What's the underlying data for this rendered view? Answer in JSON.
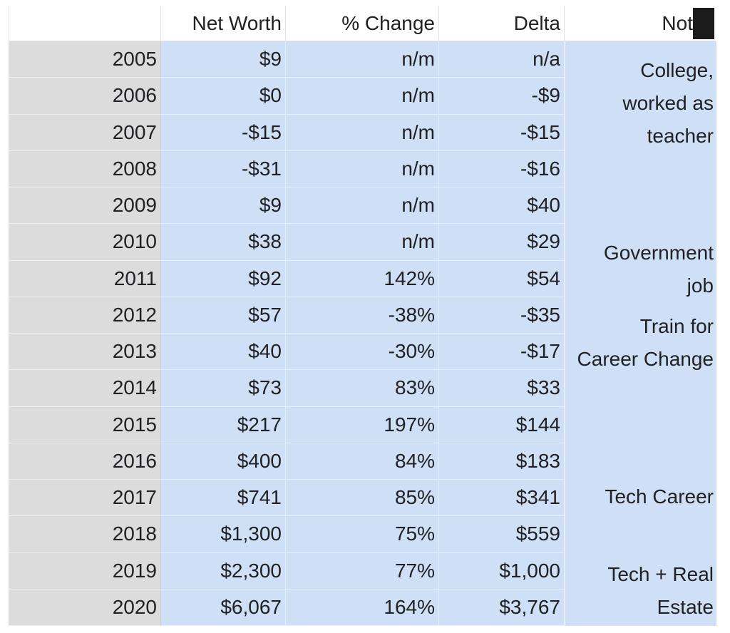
{
  "table": {
    "headers": [
      "",
      "Net Worth",
      "% Change",
      "Delta",
      "Not"
    ],
    "rows": [
      {
        "year": "2005",
        "net_worth": "$9",
        "pct": "n/m",
        "delta": "n/a"
      },
      {
        "year": "2006",
        "net_worth": "$0",
        "pct": "n/m",
        "delta": "-$9"
      },
      {
        "year": "2007",
        "net_worth": "-$15",
        "pct": "n/m",
        "delta": "-$15"
      },
      {
        "year": "2008",
        "net_worth": "-$31",
        "pct": "n/m",
        "delta": "-$16"
      },
      {
        "year": "2009",
        "net_worth": "$9",
        "pct": "n/m",
        "delta": "$40"
      },
      {
        "year": "2010",
        "net_worth": "$38",
        "pct": "n/m",
        "delta": "$29"
      },
      {
        "year": "2011",
        "net_worth": "$92",
        "pct": "142%",
        "delta": "$54"
      },
      {
        "year": "2012",
        "net_worth": "$57",
        "pct": "-38%",
        "delta": "-$35"
      },
      {
        "year": "2013",
        "net_worth": "$40",
        "pct": "-30%",
        "delta": "-$17"
      },
      {
        "year": "2014",
        "net_worth": "$73",
        "pct": "83%",
        "delta": "$33"
      },
      {
        "year": "2015",
        "net_worth": "$217",
        "pct": "197%",
        "delta": "$144"
      },
      {
        "year": "2016",
        "net_worth": "$400",
        "pct": "84%",
        "delta": "$183"
      },
      {
        "year": "2017",
        "net_worth": "$741",
        "pct": "85%",
        "delta": "$341"
      },
      {
        "year": "2018",
        "net_worth": "$1,300",
        "pct": "75%",
        "delta": "$559"
      },
      {
        "year": "2019",
        "net_worth": "$2,300",
        "pct": "77%",
        "delta": "$1,000"
      },
      {
        "year": "2020",
        "net_worth": "$6,067",
        "pct": "164%",
        "delta": "$3,767"
      }
    ],
    "notes": [
      "College,\nworked as\nteacher",
      "Government\njob",
      "Train for\nCareer Change",
      "Tech Career",
      "Tech + Real\nEstate"
    ]
  },
  "colors": {
    "value_fill": "#cfdff6",
    "row_header_fill": "#dcdcdc",
    "redaction": "#1b1b1b"
  }
}
